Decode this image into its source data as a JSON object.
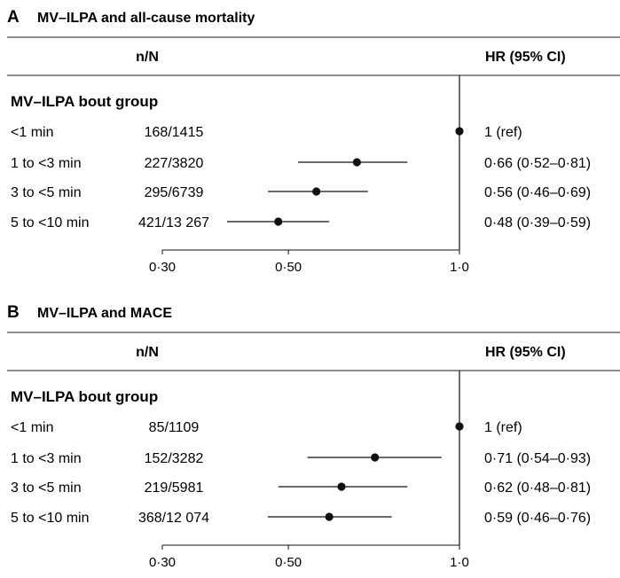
{
  "chart_data": [
    {
      "type": "forest",
      "panel_letter": "A",
      "title": "MV–ILPA and all-cause mortality",
      "col_n_header": "n/N",
      "col_hr_header": "HR (95% CI)",
      "group_label": "MV–ILPA bout group",
      "x_scale": "log",
      "xlim": [
        0.3,
        1.0
      ],
      "ticks": [
        {
          "value": 0.3,
          "label": "0·30"
        },
        {
          "value": 0.5,
          "label": "0·50"
        },
        {
          "value": 1.0,
          "label": "1·0"
        }
      ],
      "rows": [
        {
          "label": "<1 min",
          "n": "168/1415",
          "hr": 1.0,
          "lo": null,
          "hi": null,
          "hr_text": "1 (ref)"
        },
        {
          "label": "1 to <3 min",
          "n": "227/3820",
          "hr": 0.66,
          "lo": 0.52,
          "hi": 0.81,
          "hr_text": "0·66 (0·52–0·81)"
        },
        {
          "label": "3 to <5 min",
          "n": "295/6739",
          "hr": 0.56,
          "lo": 0.46,
          "hi": 0.69,
          "hr_text": "0·56 (0·46–0·69)"
        },
        {
          "label": "5 to <10 min",
          "n": "421/13 267",
          "hr": 0.48,
          "lo": 0.39,
          "hi": 0.59,
          "hr_text": "0·48 (0·39–0·59)"
        }
      ]
    },
    {
      "type": "forest",
      "panel_letter": "B",
      "title": "MV–ILPA and MACE",
      "col_n_header": "n/N",
      "col_hr_header": "HR (95% CI)",
      "group_label": "MV–ILPA bout group",
      "x_scale": "log",
      "xlim": [
        0.3,
        1.0
      ],
      "ticks": [
        {
          "value": 0.3,
          "label": "0·30"
        },
        {
          "value": 0.5,
          "label": "0·50"
        },
        {
          "value": 1.0,
          "label": "1·0"
        }
      ],
      "rows": [
        {
          "label": "<1 min",
          "n": "85/1109",
          "hr": 1.0,
          "lo": null,
          "hi": null,
          "hr_text": "1 (ref)"
        },
        {
          "label": "1 to <3 min",
          "n": "152/3282",
          "hr": 0.71,
          "lo": 0.54,
          "hi": 0.93,
          "hr_text": "0·71 (0·54–0·93)"
        },
        {
          "label": "3 to <5 min",
          "n": "219/5981",
          "hr": 0.62,
          "lo": 0.48,
          "hi": 0.81,
          "hr_text": "0·62 (0·48–0·81)"
        },
        {
          "label": "5 to <10 min",
          "n": "368/12 074",
          "hr": 0.59,
          "lo": 0.46,
          "hi": 0.76,
          "hr_text": "0·59 (0·46–0·76)"
        }
      ]
    }
  ]
}
